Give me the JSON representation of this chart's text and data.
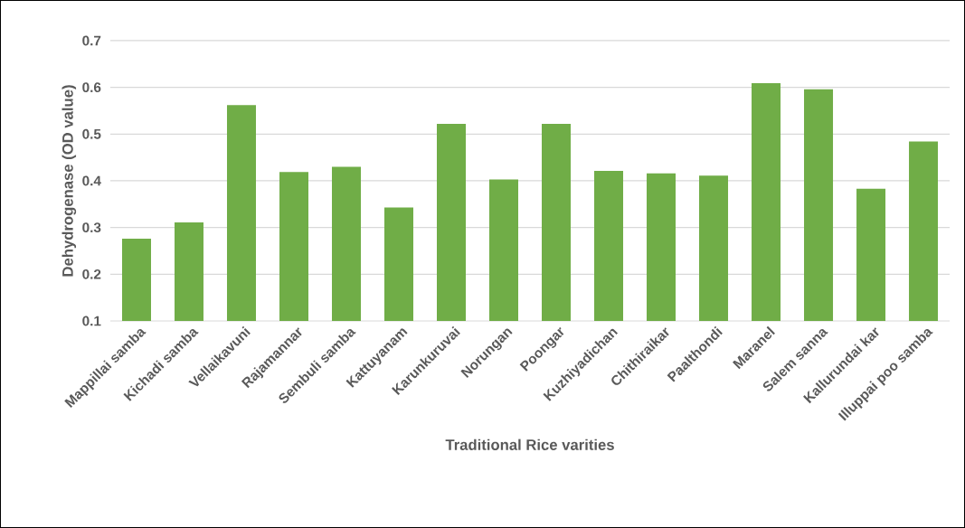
{
  "chart_data": {
    "type": "bar",
    "xlabel": "Traditional Rice varities",
    "ylabel": "Dehydrogenase (OD value)",
    "categories": [
      "Mappillai samba",
      "Kichadi samba",
      "Vellaikavuni",
      "Rajamannar",
      "Sembuli samba",
      "Kattuyanam",
      "Karunkuruvai",
      "Norungan",
      "Poongar",
      "Kuzhiyadichan",
      "Chithiraikar",
      "Paalthondi",
      "Maranel",
      "Salem sanna",
      "Kallurundai kar",
      "Illuppai poo samba"
    ],
    "values": [
      0.276,
      0.311,
      0.562,
      0.419,
      0.43,
      0.343,
      0.522,
      0.403,
      0.522,
      0.421,
      0.416,
      0.411,
      0.609,
      0.596,
      0.383,
      0.484
    ],
    "color": "#70ad47",
    "ylim": [
      0.1,
      0.7
    ],
    "yticks": [
      0.1,
      0.2,
      0.3,
      0.4,
      0.5,
      0.6,
      0.7
    ],
    "grid": "y"
  }
}
